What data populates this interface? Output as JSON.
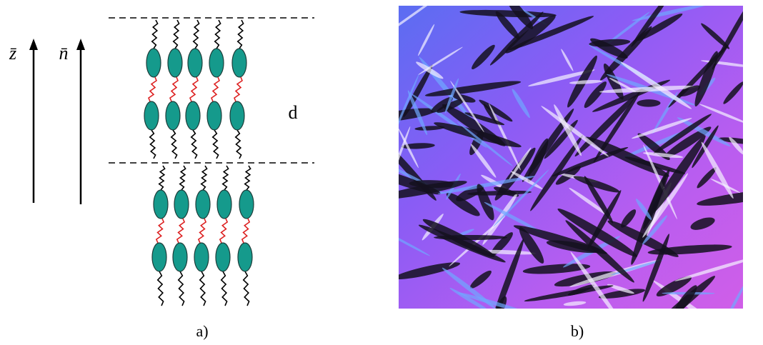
{
  "diagram": {
    "axis_labels": {
      "z": "z̄",
      "n": "n̄"
    },
    "layer_label": "d"
  },
  "captions": [
    "a)",
    "b)"
  ]
}
